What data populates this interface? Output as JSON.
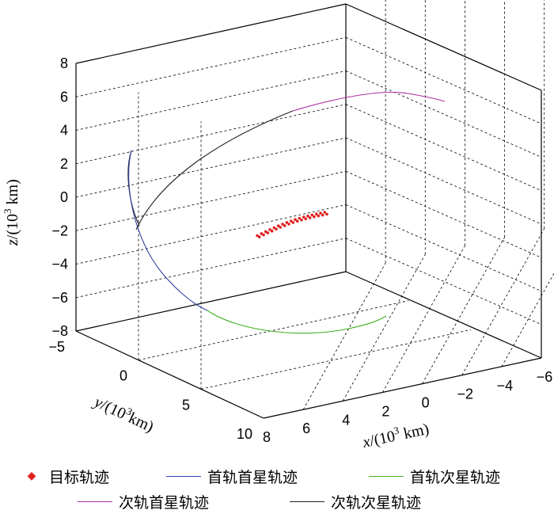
{
  "chart_data": {
    "type": "line3d",
    "x_axis": {
      "label_var": "x",
      "label_unit": "/(10",
      "label_sup": "3",
      "label_tail": " km)",
      "ticks": [
        "8",
        "6",
        "4",
        "2",
        "0",
        "−2",
        "−4",
        "−6"
      ],
      "range": [
        -6,
        8
      ]
    },
    "y_axis": {
      "label_var": "y",
      "label_unit": "/(10",
      "label_sup": "3",
      "label_tail": "km)",
      "ticks": [
        "−5",
        "0",
        "5",
        "10"
      ],
      "range": [
        -5,
        10
      ]
    },
    "z_axis": {
      "label_var": "z",
      "label_unit": "/(10",
      "label_sup": "3",
      "label_tail": " km)",
      "ticks": [
        "8",
        "6",
        "4",
        "2",
        "0",
        "−2",
        "−4",
        "−6",
        "−8"
      ],
      "range": [
        -8,
        8
      ]
    },
    "grid": true,
    "series": [
      {
        "name": "目标轨迹",
        "color": "#e02020",
        "style": "dots"
      },
      {
        "name": "首轨首星轨迹",
        "color": "#3040a0",
        "style": "line"
      },
      {
        "name": "首轨次星轨迹",
        "color": "#40b020",
        "style": "line"
      },
      {
        "name": "次轨首星轨迹",
        "color": "#b030a0",
        "style": "line"
      },
      {
        "name": "次轨次星轨迹",
        "color": "#202020",
        "style": "line"
      }
    ],
    "legend_position": "bottom"
  }
}
